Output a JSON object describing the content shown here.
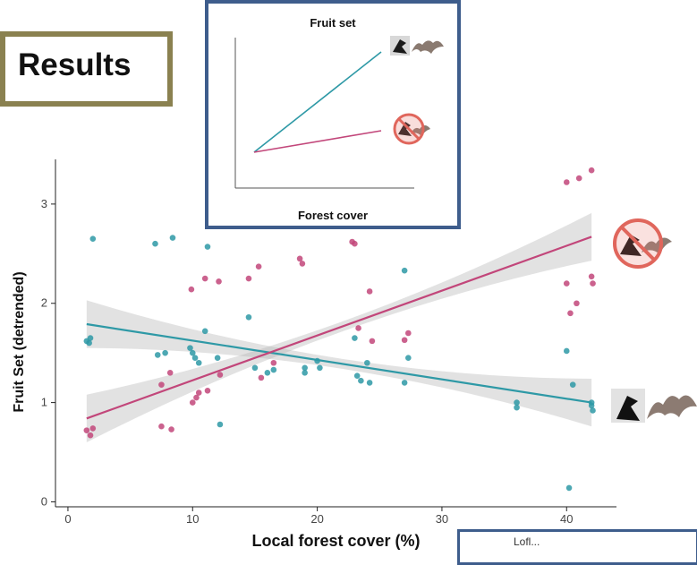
{
  "results_label": "Results",
  "inset": {
    "title": "Fruit set",
    "xlabel": "Forest cover"
  },
  "note_text": "Lofl...",
  "colors": {
    "with_vertebrates": "#2e99a6",
    "excluded": "#c2467a",
    "frame": "#3e5d8c",
    "results_border": "#8a8150"
  },
  "icons": {
    "with": "bird-bat-icon",
    "excluded": "excluded-bird-bat-icon"
  },
  "chart_data": {
    "type": "scatter",
    "title": "",
    "xlabel": "Local forest cover (%)",
    "ylabel": "Fruit Set (detrended)",
    "xlim": [
      -1,
      44
    ],
    "ylim": [
      -0.05,
      3.45
    ],
    "xticks": [
      0,
      10,
      20,
      30,
      40
    ],
    "yticks": [
      0,
      1,
      2,
      3
    ],
    "grid": false,
    "series": [
      {
        "color": "#2e99a6",
        "points": [
          [
            1.7,
            1.6
          ],
          [
            1.8,
            1.65
          ],
          [
            2.0,
            2.65
          ],
          [
            1.5,
            1.62
          ],
          [
            7,
            2.6
          ],
          [
            8.4,
            2.66
          ],
          [
            7.2,
            1.48
          ],
          [
            7.8,
            1.5
          ],
          [
            9.8,
            1.55
          ],
          [
            10,
            1.5
          ],
          [
            10.2,
            1.45
          ],
          [
            10.5,
            1.4
          ],
          [
            11,
            1.72
          ],
          [
            11.2,
            2.57
          ],
          [
            12,
            1.45
          ],
          [
            12.2,
            0.78
          ],
          [
            14.5,
            1.86
          ],
          [
            15,
            1.35
          ],
          [
            16,
            1.3
          ],
          [
            16.5,
            1.33
          ],
          [
            19,
            1.35
          ],
          [
            19,
            1.3
          ],
          [
            20,
            1.42
          ],
          [
            20.2,
            1.35
          ],
          [
            23,
            1.65
          ],
          [
            23.2,
            1.27
          ],
          [
            23.5,
            1.22
          ],
          [
            24,
            1.4
          ],
          [
            24.2,
            1.2
          ],
          [
            27,
            2.33
          ],
          [
            27,
            1.2
          ],
          [
            27.3,
            1.45
          ],
          [
            36,
            1.0
          ],
          [
            36,
            0.95
          ],
          [
            40,
            1.52
          ],
          [
            40.2,
            0.14
          ],
          [
            42,
            1.0
          ],
          [
            42,
            0.97
          ],
          [
            42.1,
            0.92
          ],
          [
            40.5,
            1.18
          ]
        ],
        "fit": [
          [
            1.5,
            1.79
          ],
          [
            42,
            1.0
          ]
        ]
      },
      {
        "color": "#c2467a",
        "points": [
          [
            1.5,
            0.72
          ],
          [
            1.8,
            0.67
          ],
          [
            2.0,
            0.74
          ],
          [
            7.5,
            0.76
          ],
          [
            8.3,
            0.73
          ],
          [
            7.5,
            1.18
          ],
          [
            8.2,
            1.3
          ],
          [
            9.9,
            2.14
          ],
          [
            10,
            1.0
          ],
          [
            10.3,
            1.05
          ],
          [
            10.5,
            1.1
          ],
          [
            11,
            2.25
          ],
          [
            11.2,
            1.12
          ],
          [
            12.1,
            2.22
          ],
          [
            12.2,
            1.28
          ],
          [
            14.5,
            2.25
          ],
          [
            15.3,
            2.37
          ],
          [
            15.5,
            1.25
          ],
          [
            16.5,
            1.4
          ],
          [
            18.6,
            2.45
          ],
          [
            18.8,
            2.4
          ],
          [
            22.8,
            2.62
          ],
          [
            23,
            2.6
          ],
          [
            23.3,
            1.75
          ],
          [
            24.2,
            2.12
          ],
          [
            24.4,
            1.62
          ],
          [
            27,
            1.63
          ],
          [
            27.3,
            1.7
          ],
          [
            40,
            3.22
          ],
          [
            41,
            3.26
          ],
          [
            42,
            3.34
          ],
          [
            40,
            2.2
          ],
          [
            40.3,
            1.9
          ],
          [
            40.8,
            2.0
          ],
          [
            42,
            2.27
          ],
          [
            42.1,
            2.2
          ]
        ],
        "fit": [
          [
            1.5,
            0.84
          ],
          [
            42,
            2.67
          ]
        ]
      }
    ]
  }
}
